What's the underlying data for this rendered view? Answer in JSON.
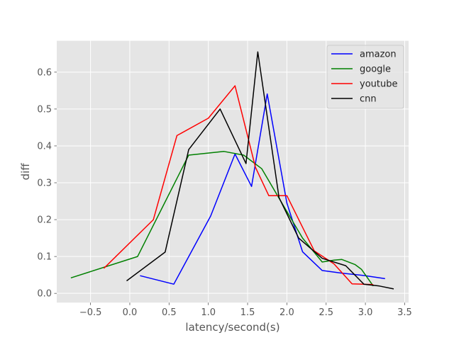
{
  "chart_data": {
    "type": "line",
    "title": "",
    "xlabel": "latency/second(s)",
    "ylabel": "diff",
    "xlim": [
      -0.93,
      3.55
    ],
    "ylim": [
      -0.025,
      0.685
    ],
    "xticks": [
      -0.5,
      0.0,
      0.5,
      1.0,
      1.5,
      2.0,
      2.5,
      3.0,
      3.5
    ],
    "xtick_labels": [
      "−0.5",
      "0.0",
      "0.5",
      "1.0",
      "1.5",
      "2.0",
      "2.5",
      "3.0",
      "3.5"
    ],
    "yticks": [
      0.0,
      0.1,
      0.2,
      0.3,
      0.4,
      0.5,
      0.6
    ],
    "ytick_labels": [
      "0.0",
      "0.1",
      "0.2",
      "0.3",
      "0.4",
      "0.5",
      "0.6"
    ],
    "grid": true,
    "legend_position": "top-right",
    "series": [
      {
        "name": "amazon",
        "color": "#0000ff",
        "x": [
          0.13,
          0.56,
          1.03,
          1.34,
          1.55,
          1.75,
          2.0,
          2.2,
          2.45,
          2.7,
          3.0,
          3.25
        ],
        "y": [
          0.048,
          0.025,
          0.21,
          0.378,
          0.29,
          0.541,
          0.245,
          0.113,
          0.062,
          0.055,
          0.048,
          0.04
        ]
      },
      {
        "name": "google",
        "color": "#008000",
        "x": [
          -0.75,
          0.1,
          0.75,
          1.2,
          1.45,
          1.68,
          1.95,
          2.2,
          2.45,
          2.6,
          2.7,
          2.87,
          2.95,
          3.1
        ],
        "y": [
          0.042,
          0.1,
          0.375,
          0.385,
          0.375,
          0.338,
          0.24,
          0.15,
          0.085,
          0.09,
          0.092,
          0.078,
          0.065,
          0.02
        ]
      },
      {
        "name": "youtube",
        "color": "#ff0000",
        "x": [
          -0.33,
          0.3,
          0.6,
          1.0,
          1.34,
          1.6,
          1.77,
          2.0,
          2.35,
          2.6,
          2.83,
          3.1
        ],
        "y": [
          0.068,
          0.2,
          0.428,
          0.475,
          0.563,
          0.342,
          0.265,
          0.265,
          0.115,
          0.08,
          0.026,
          0.024
        ]
      },
      {
        "name": "cnn",
        "color": "#000000",
        "x": [
          -0.04,
          0.45,
          0.75,
          1.15,
          1.48,
          1.63,
          1.9,
          2.15,
          2.45,
          2.75,
          2.98,
          3.18,
          3.36
        ],
        "y": [
          0.034,
          0.112,
          0.39,
          0.5,
          0.352,
          0.655,
          0.26,
          0.15,
          0.095,
          0.075,
          0.025,
          0.02,
          0.012
        ]
      }
    ]
  }
}
